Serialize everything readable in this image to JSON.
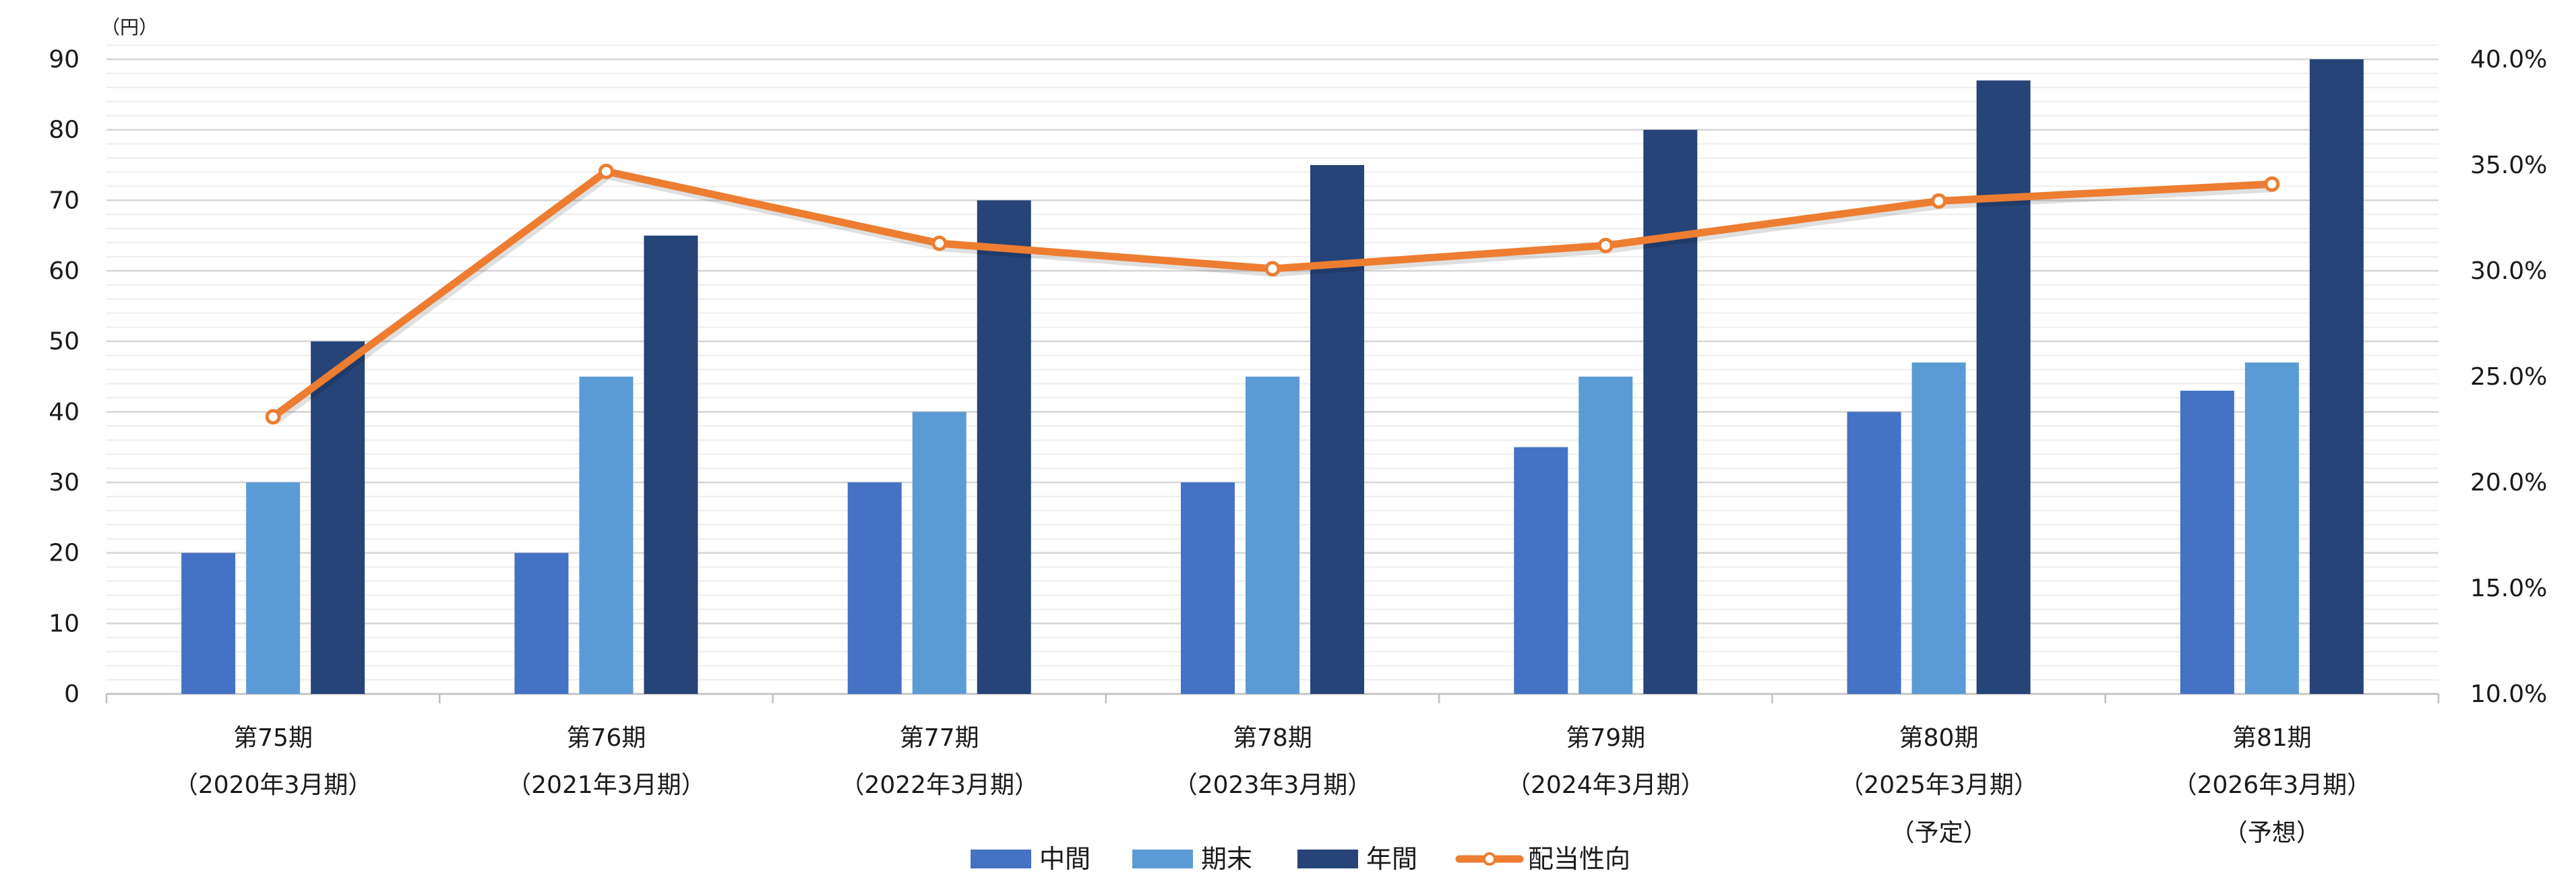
{
  "chart_data": {
    "type": "bar",
    "units_label": "（円）",
    "categories": [
      {
        "line1": "第75期",
        "line2": "（2020年3月期）",
        "line3": ""
      },
      {
        "line1": "第76期",
        "line2": "（2021年3月期）",
        "line3": ""
      },
      {
        "line1": "第77期",
        "line2": "（2022年3月期）",
        "line3": ""
      },
      {
        "line1": "第78期",
        "line2": "（2023年3月期）",
        "line3": ""
      },
      {
        "line1": "第79期",
        "line2": "（2024年3月期）",
        "line3": ""
      },
      {
        "line1": "第80期",
        "line2": "（2025年3月期）",
        "line3": "（予定）"
      },
      {
        "line1": "第81期",
        "line2": "（2026年3月期）",
        "line3": "（予想）"
      }
    ],
    "series": [
      {
        "name": "中間",
        "type": "bar",
        "axis": "left",
        "color": "#4472C4",
        "values": [
          20,
          20,
          30,
          30,
          35,
          40,
          43
        ]
      },
      {
        "name": "期末",
        "type": "bar",
        "axis": "left",
        "color": "#5B9BD5",
        "values": [
          30,
          45,
          40,
          45,
          45,
          47,
          47
        ]
      },
      {
        "name": "年間",
        "type": "bar",
        "axis": "left",
        "color": "#264478",
        "values": [
          50,
          65,
          70,
          75,
          80,
          87,
          90
        ]
      },
      {
        "name": "配当性向",
        "type": "line",
        "axis": "right",
        "color": "#ED7D31",
        "values": [
          23.1,
          34.7,
          31.3,
          30.1,
          31.2,
          33.3,
          34.1
        ]
      }
    ],
    "y_left": {
      "min": 0,
      "max": 90,
      "step": 10,
      "minor_step": 2,
      "ticks": [
        "0",
        "10",
        "20",
        "30",
        "40",
        "50",
        "60",
        "70",
        "80",
        "90"
      ]
    },
    "y_right": {
      "min": 10,
      "max": 40,
      "step": 5,
      "ticks": [
        "10.0%",
        "15.0%",
        "20.0%",
        "25.0%",
        "30.0%",
        "35.0%",
        "40.0%"
      ]
    },
    "grid": true,
    "legend_position": "bottom"
  }
}
